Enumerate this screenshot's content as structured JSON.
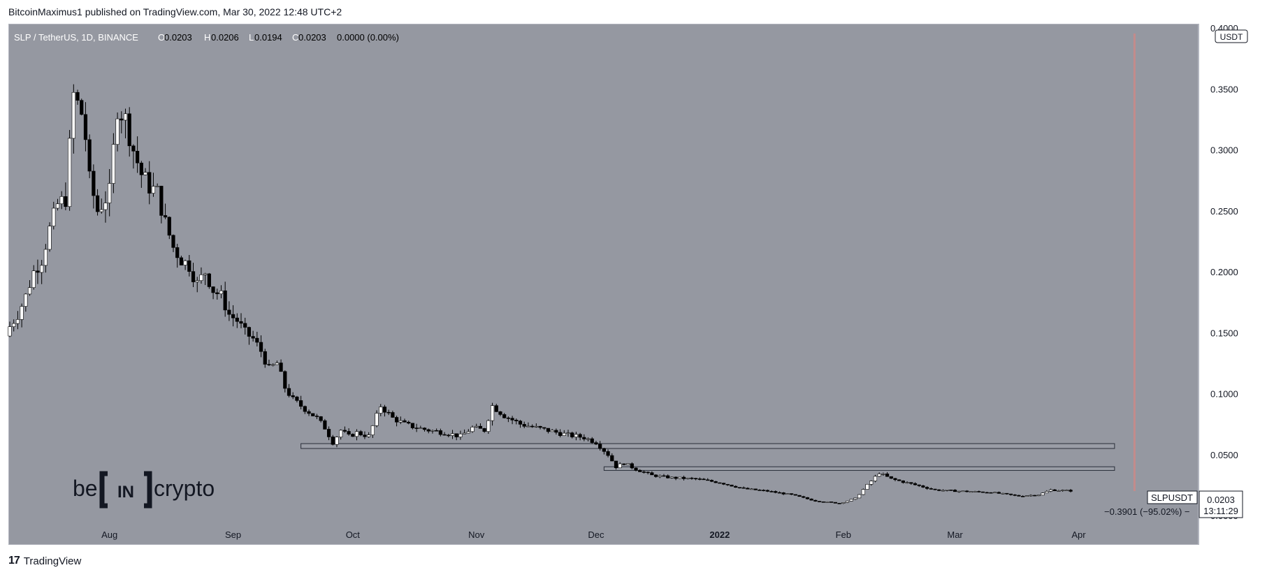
{
  "header": {
    "publisher": "BitcoinMaximus1 published on TradingView.com, Mar 30, 2022 12:48 UTC+2"
  },
  "legend": {
    "symbol": "SLP / TetherUS, 1D, BINANCE",
    "o_label": "O",
    "o_value": "0.0203",
    "h_label": "H",
    "h_value": "0.0206",
    "l_label": "L",
    "l_value": "0.0194",
    "c_label": "C",
    "c_value": "0.0203",
    "change": "0.0000 (0.00%)"
  },
  "axis": {
    "currency_badge": "USDT"
  },
  "price_tag": {
    "symbol": "SLPUSDT",
    "price": "0.0203",
    "countdown": "13:11:29"
  },
  "measure_label": "−0.3901 (−95.02%) −",
  "watermark": {
    "left": "be",
    "middle": "IN",
    "right": "crypto"
  },
  "footer": {
    "brand": "TradingView"
  },
  "colors": {
    "background": "#9598a1",
    "up": "#ffffff",
    "down": "#000000",
    "highlight": "#c48b8b"
  },
  "chart_data": {
    "type": "candlestick",
    "y_ticks": [
      "0.4000",
      "0.3500",
      "0.3000",
      "0.2500",
      "0.2000",
      "0.1500",
      "0.1000",
      "0.0500",
      "0.0000"
    ],
    "y_ticks_values": [
      0.4,
      0.35,
      0.3,
      0.25,
      0.2,
      0.15,
      0.1,
      0.05,
      0.0
    ],
    "ylim": [
      0.0,
      0.4
    ],
    "x_ticks": [
      "Aug",
      "Sep",
      "Oct",
      "Nov",
      "Dec",
      "2022",
      "Feb",
      "Mar",
      "Apr"
    ],
    "x_ticks_dates": [
      "2021-08-01",
      "2021-09-01",
      "2021-10-01",
      "2021-11-01",
      "2021-12-01",
      "2022-01-01",
      "2022-02-01",
      "2022-03-01",
      "2022-04-01"
    ],
    "x_start_date": "2021-07-07",
    "x_end_date": "2022-04-30",
    "support_lines": [
      {
        "from": "2021-09-18",
        "to": "2022-04-10",
        "low": 0.055,
        "high": 0.059
      },
      {
        "from": "2021-12-03",
        "to": "2022-04-10",
        "low": 0.037,
        "high": 0.04
      }
    ],
    "vertical_line_date": "2022-04-15",
    "price_path_close": [
      [
        "2021-07-07",
        0.155
      ],
      [
        "2021-07-09",
        0.165
      ],
      [
        "2021-07-11",
        0.18
      ],
      [
        "2021-07-13",
        0.2
      ],
      [
        "2021-07-15",
        0.21
      ],
      [
        "2021-07-17",
        0.235
      ],
      [
        "2021-07-19",
        0.255
      ],
      [
        "2021-07-21",
        0.26
      ],
      [
        "2021-07-23",
        0.345
      ],
      [
        "2021-07-25",
        0.33
      ],
      [
        "2021-07-26",
        0.31
      ],
      [
        "2021-07-27",
        0.275
      ],
      [
        "2021-07-29",
        0.25
      ],
      [
        "2021-07-31",
        0.26
      ],
      [
        "2021-08-01",
        0.265
      ],
      [
        "2021-08-03",
        0.335
      ],
      [
        "2021-08-05",
        0.325
      ],
      [
        "2021-08-07",
        0.3
      ],
      [
        "2021-08-09",
        0.28
      ],
      [
        "2021-08-11",
        0.27
      ],
      [
        "2021-08-13",
        0.265
      ],
      [
        "2021-08-15",
        0.24
      ],
      [
        "2021-08-17",
        0.22
      ],
      [
        "2021-08-19",
        0.21
      ],
      [
        "2021-08-21",
        0.205
      ],
      [
        "2021-08-23",
        0.19
      ],
      [
        "2021-08-25",
        0.2
      ],
      [
        "2021-08-27",
        0.185
      ],
      [
        "2021-08-29",
        0.18
      ],
      [
        "2021-08-31",
        0.165
      ],
      [
        "2021-09-02",
        0.16
      ],
      [
        "2021-09-04",
        0.15
      ],
      [
        "2021-09-06",
        0.145
      ],
      [
        "2021-09-08",
        0.135
      ],
      [
        "2021-09-10",
        0.12
      ],
      [
        "2021-09-12",
        0.125
      ],
      [
        "2021-09-14",
        0.105
      ],
      [
        "2021-09-16",
        0.095
      ],
      [
        "2021-09-18",
        0.09
      ],
      [
        "2021-09-20",
        0.085
      ],
      [
        "2021-09-22",
        0.08
      ],
      [
        "2021-09-24",
        0.072
      ],
      [
        "2021-09-26",
        0.06
      ],
      [
        "2021-09-28",
        0.07
      ],
      [
        "2021-09-30",
        0.065
      ],
      [
        "2021-10-02",
        0.068
      ],
      [
        "2021-10-05",
        0.065
      ],
      [
        "2021-10-08",
        0.09
      ],
      [
        "2021-10-11",
        0.08
      ],
      [
        "2021-10-14",
        0.075
      ],
      [
        "2021-10-17",
        0.072
      ],
      [
        "2021-10-20",
        0.07
      ],
      [
        "2021-10-24",
        0.068
      ],
      [
        "2021-10-28",
        0.065
      ],
      [
        "2021-10-31",
        0.072
      ],
      [
        "2021-11-03",
        0.07
      ],
      [
        "2021-11-05",
        0.09
      ],
      [
        "2021-11-08",
        0.082
      ],
      [
        "2021-11-12",
        0.075
      ],
      [
        "2021-11-16",
        0.072
      ],
      [
        "2021-11-20",
        0.069
      ],
      [
        "2021-11-24",
        0.066
      ],
      [
        "2021-11-28",
        0.064
      ],
      [
        "2021-12-01",
        0.06
      ],
      [
        "2021-12-04",
        0.05
      ],
      [
        "2021-12-06",
        0.04
      ],
      [
        "2021-12-08",
        0.043
      ],
      [
        "2021-12-11",
        0.038
      ],
      [
        "2021-12-15",
        0.033
      ],
      [
        "2021-12-20",
        0.031
      ],
      [
        "2021-12-26",
        0.03
      ],
      [
        "2022-01-01",
        0.027
      ],
      [
        "2022-01-07",
        0.022
      ],
      [
        "2022-01-13",
        0.02
      ],
      [
        "2022-01-19",
        0.017
      ],
      [
        "2022-01-25",
        0.012
      ],
      [
        "2022-01-31",
        0.01
      ],
      [
        "2022-02-04",
        0.014
      ],
      [
        "2022-02-07",
        0.025
      ],
      [
        "2022-02-10",
        0.035
      ],
      [
        "2022-02-13",
        0.03
      ],
      [
        "2022-02-18",
        0.026
      ],
      [
        "2022-02-24",
        0.021
      ],
      [
        "2022-03-02",
        0.02
      ],
      [
        "2022-03-10",
        0.019
      ],
      [
        "2022-03-17",
        0.016
      ],
      [
        "2022-03-22",
        0.017
      ],
      [
        "2022-03-25",
        0.021
      ],
      [
        "2022-03-30",
        0.0203
      ]
    ]
  }
}
